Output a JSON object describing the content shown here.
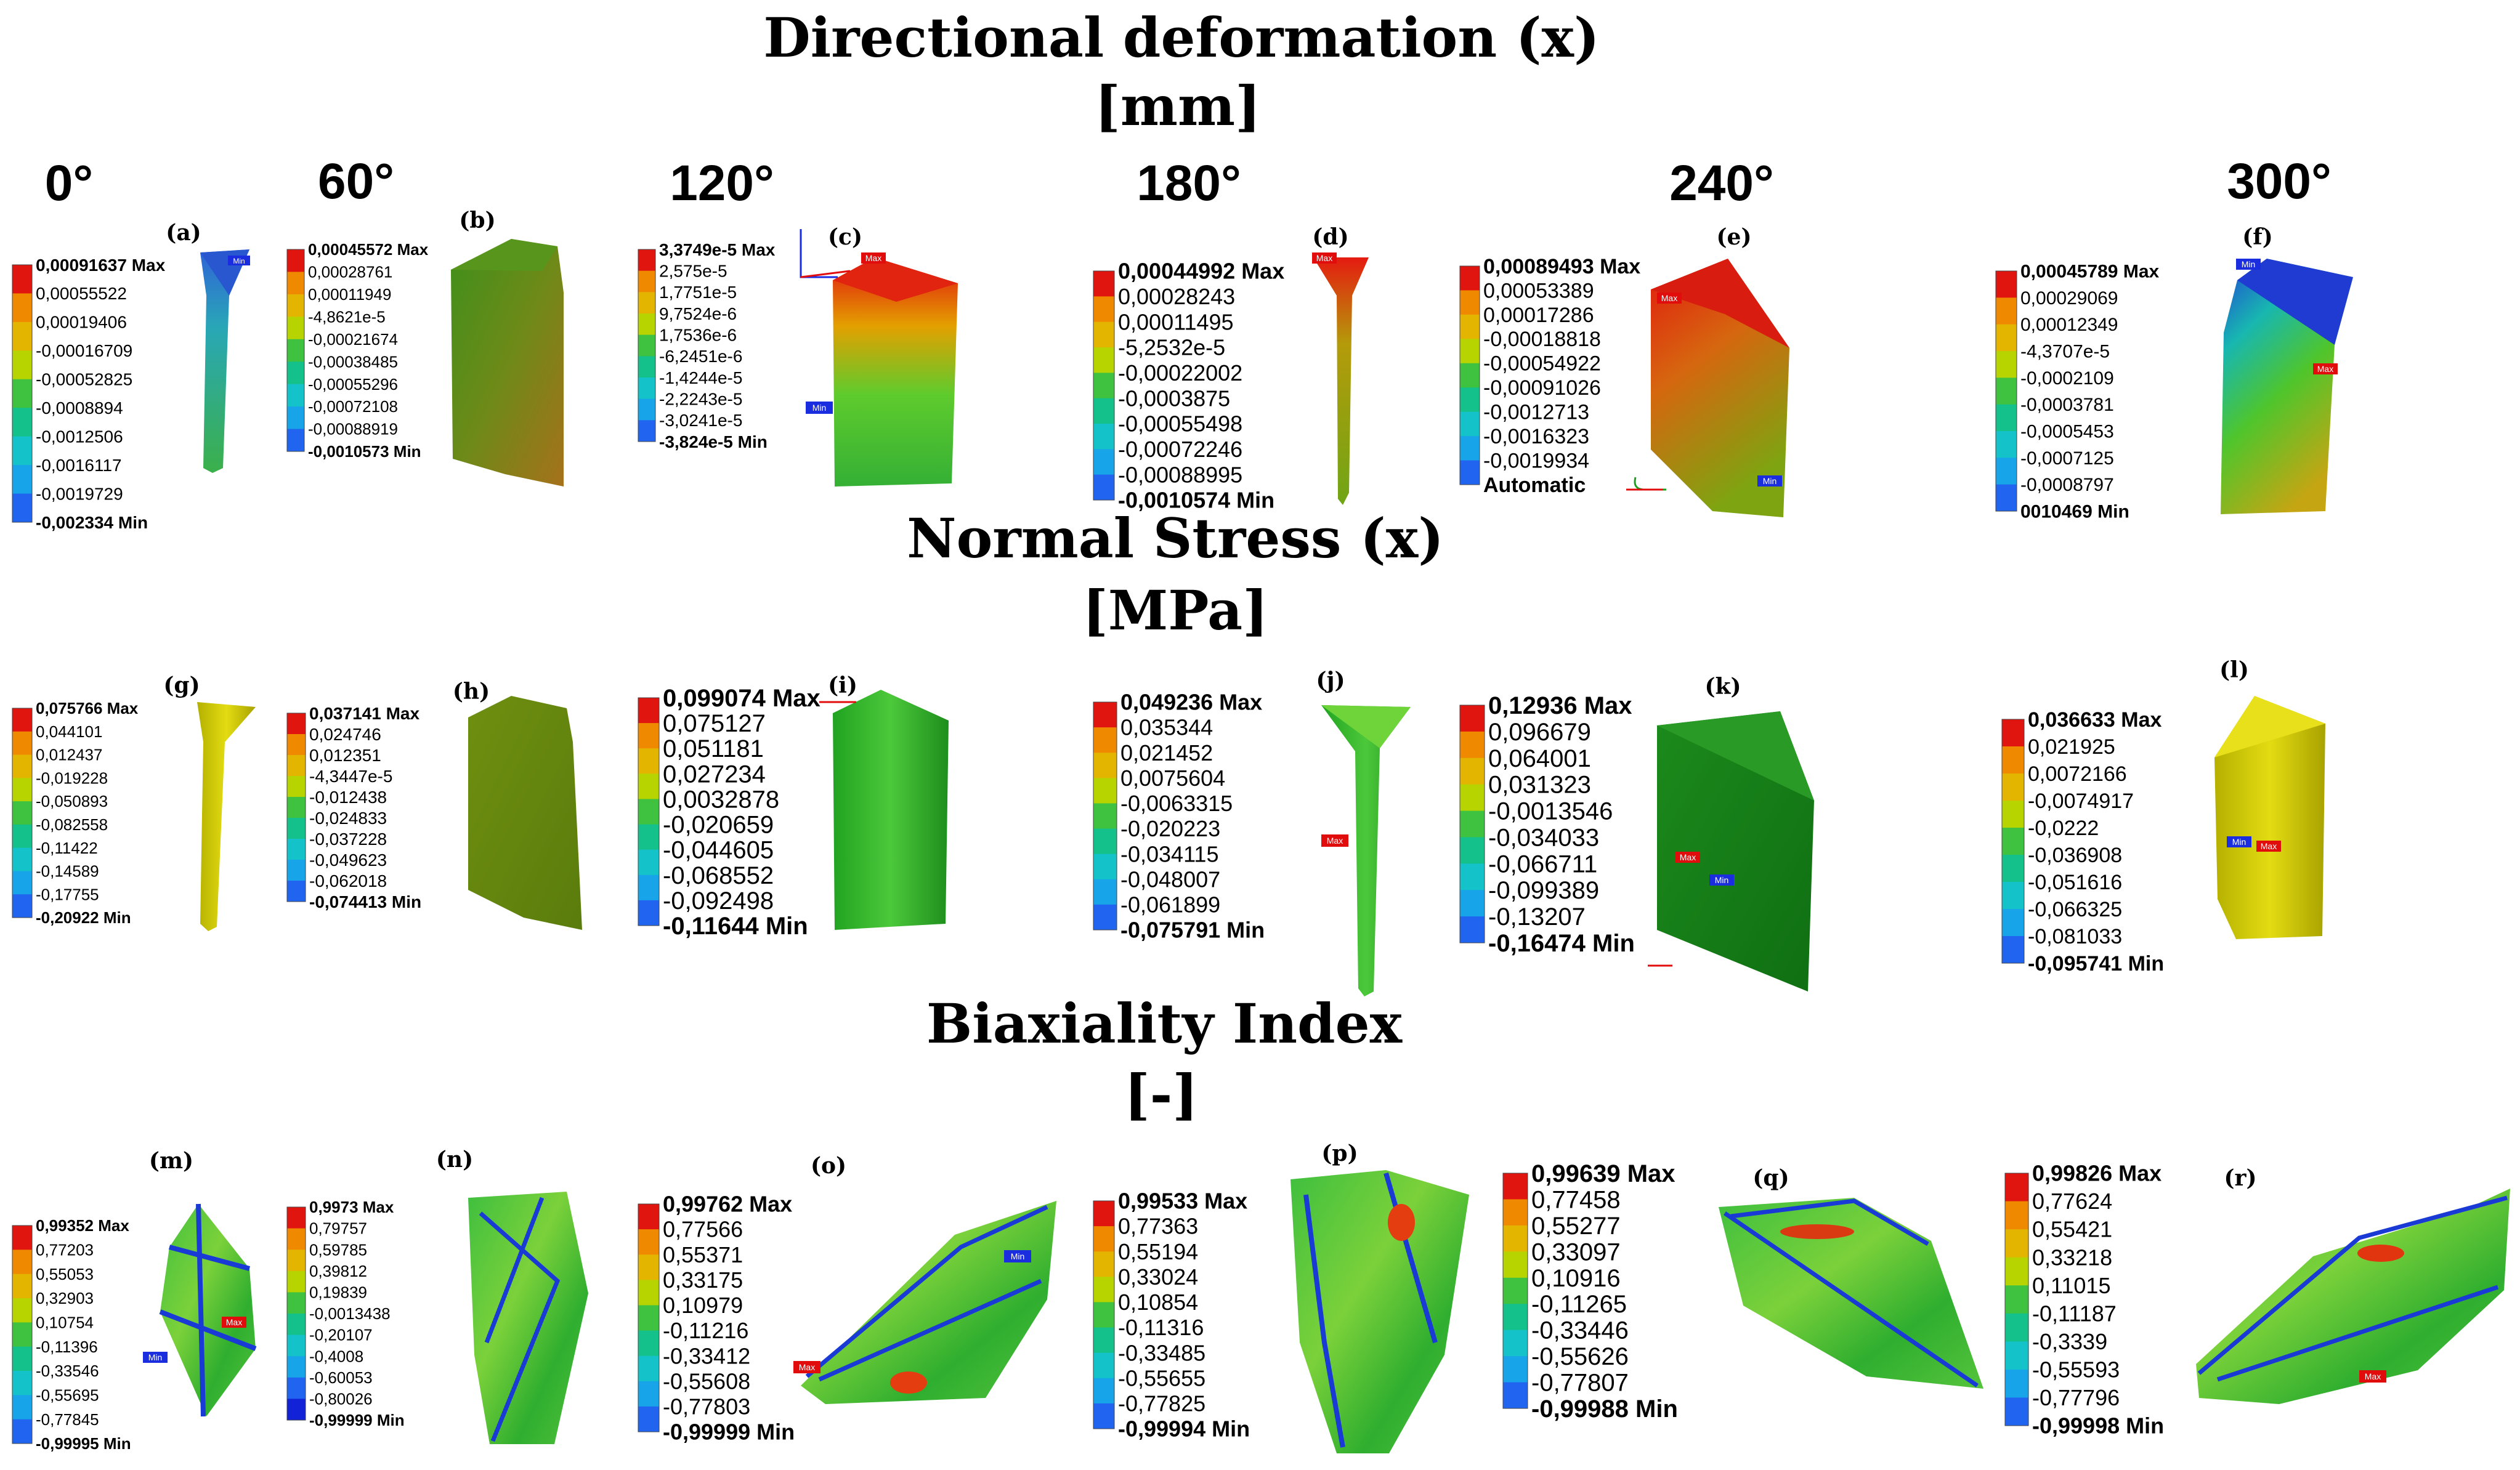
{
  "sections": [
    {
      "title": "Directional deformation (x)",
      "unit": "[mm]"
    },
    {
      "title": "Normal Stress (x)",
      "unit": "[MPa]"
    },
    {
      "title": "Biaxiality Index",
      "unit": "[-]"
    }
  ],
  "angles": [
    "0°",
    "60°",
    "120°",
    "180°",
    "240°",
    "300°"
  ],
  "panels": [
    {
      "letter": "(a)",
      "values": [
        "0,00091637 Max",
        "0,00055522",
        "0,00019406",
        "-0,00016709",
        "-0,00052825",
        "-0,0008894",
        "-0,0012506",
        "-0,0016117",
        "-0,0019729",
        "-0,002334 Min"
      ]
    },
    {
      "letter": "(b)",
      "values": [
        "0,00045572 Max",
        "0,00028761",
        "0,00011949",
        "-4,8621e-5",
        "-0,00021674",
        "-0,00038485",
        "-0,00055296",
        "-0,00072108",
        "-0,00088919",
        "-0,0010573 Min"
      ]
    },
    {
      "letter": "(c)",
      "values": [
        "3,3749e-5 Max",
        "2,575e-5",
        "1,7751e-5",
        "9,7524e-6",
        "1,7536e-6",
        "-6,2451e-6",
        "-1,4244e-5",
        "-2,2243e-5",
        "-3,0241e-5",
        "-3,824e-5 Min"
      ]
    },
    {
      "letter": "(d)",
      "values": [
        "0,00044992 Max",
        "0,00028243",
        "0,00011495",
        "-5,2532e-5",
        "-0,00022002",
        "-0,0003875",
        "-0,00055498",
        "-0,00072246",
        "-0,00088995",
        "-0,0010574 Min"
      ]
    },
    {
      "letter": "(e)",
      "values": [
        "0,00089493 Max",
        "0,00053389",
        "0,00017286",
        "-0,00018818",
        "-0,00054922",
        "-0,00091026",
        "-0,0012713",
        "-0,0016323",
        "-0,0019934",
        "Automatic"
      ]
    },
    {
      "letter": "(f)",
      "values": [
        "0,00045789 Max",
        "0,00029069",
        "0,00012349",
        "-4,3707e-5",
        "-0,0002109",
        "-0,0003781",
        "-0,0005453",
        "-0,0007125",
        "-0,0008797",
        "0010469 Min"
      ]
    },
    {
      "letter": "(g)",
      "values": [
        "0,075766 Max",
        "0,044101",
        "0,012437",
        "-0,019228",
        "-0,050893",
        "-0,082558",
        "-0,11422",
        "-0,14589",
        "-0,17755",
        "-0,20922 Min"
      ]
    },
    {
      "letter": "(h)",
      "values": [
        "0,037141 Max",
        "0,024746",
        "0,012351",
        "-4,3447e-5",
        "-0,012438",
        "-0,024833",
        "-0,037228",
        "-0,049623",
        "-0,062018",
        "-0,074413 Min"
      ]
    },
    {
      "letter": "(i)",
      "values": [
        "0,099074 Max",
        "0,075127",
        "0,051181",
        "0,027234",
        "0,0032878",
        "-0,020659",
        "-0,044605",
        "-0,068552",
        "-0,092498",
        "-0,11644 Min"
      ]
    },
    {
      "letter": "(j)",
      "values": [
        "0,049236 Max",
        "0,035344",
        "0,021452",
        "0,0075604",
        "-0,0063315",
        "-0,020223",
        "-0,034115",
        "-0,048007",
        "-0,061899",
        "-0,075791 Min"
      ]
    },
    {
      "letter": "(k)",
      "values": [
        "0,12936 Max",
        "0,096679",
        "0,064001",
        "0,031323",
        "-0,0013546",
        "-0,034033",
        "-0,066711",
        "-0,099389",
        "-0,13207",
        "-0,16474 Min"
      ]
    },
    {
      "letter": "(l)",
      "values": [
        "0,036633 Max",
        "0,021925",
        "0,0072166",
        "-0,0074917",
        "-0,0222",
        "-0,036908",
        "-0,051616",
        "-0,066325",
        "-0,081033",
        "-0,095741 Min"
      ]
    },
    {
      "letter": "(m)",
      "values": [
        "0,99352 Max",
        "0,77203",
        "0,55053",
        "0,32903",
        "0,10754",
        "-0,11396",
        "-0,33546",
        "-0,55695",
        "-0,77845",
        "-0,99995 Min"
      ]
    },
    {
      "letter": "(n)",
      "values": [
        "0,9973 Max",
        "0,79757",
        "0,59785",
        "0,39812",
        "0,19839",
        "-0,0013438",
        "-0,20107",
        "-0,4008",
        "-0,60053",
        "-0,80026",
        "-0,99999 Min"
      ]
    },
    {
      "letter": "(o)",
      "values": [
        "0,99762 Max",
        "0,77566",
        "0,55371",
        "0,33175",
        "0,10979",
        "-0,11216",
        "-0,33412",
        "-0,55608",
        "-0,77803",
        "-0,99999 Min"
      ]
    },
    {
      "letter": "(p)",
      "values": [
        "0,99533 Max",
        "0,77363",
        "0,55194",
        "0,33024",
        "0,10854",
        "-0,11316",
        "-0,33485",
        "-0,55655",
        "-0,77825",
        "-0,99994 Min"
      ]
    },
    {
      "letter": "(q)",
      "values": [
        "0,99639 Max",
        "0,77458",
        "0,55277",
        "0,33097",
        "0,10916",
        "-0,11265",
        "-0,33446",
        "-0,55626",
        "-0,77807",
        "-0,99988 Min"
      ]
    },
    {
      "letter": "(r)",
      "values": [
        "0,99826 Max",
        "0,77624",
        "0,55421",
        "0,33218",
        "0,11015",
        "-0,11187",
        "-0,3339",
        "-0,55593",
        "-0,77796",
        "-0,99998 Min"
      ]
    }
  ],
  "tags": {
    "max": "Max",
    "min": "Min"
  }
}
